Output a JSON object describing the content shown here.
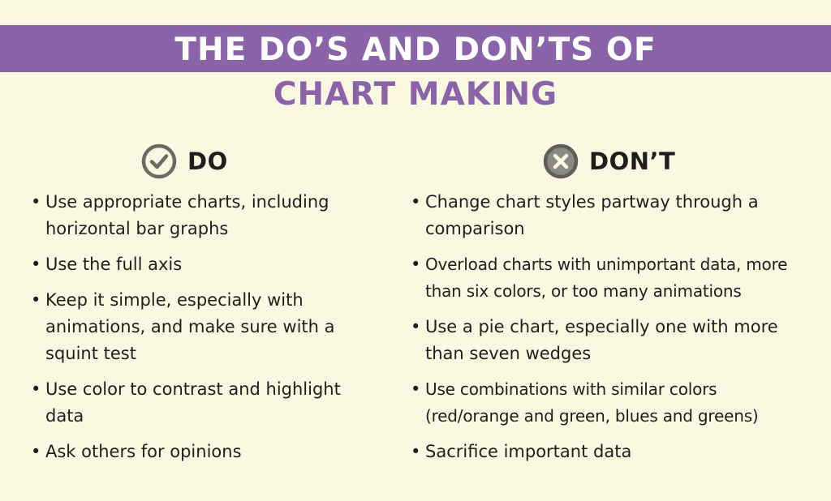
{
  "title": {
    "line1": "THE DO’S AND DON’TS OF",
    "line2": "CHART MAKING"
  },
  "colors": {
    "background": "#fbf8e2",
    "accent_purple": "#8b63a8",
    "icon_gray": "#6b6b64",
    "text": "#1e1e1e"
  },
  "do": {
    "icon": "check-circle-icon",
    "heading": "DO",
    "items": [
      "Use appropriate charts, including horizontal bar graphs",
      "Use the full axis",
      "Keep it simple, especially with animations, and make sure with a squint test",
      "Use color to contrast and highlight data",
      "Ask others for opinions"
    ]
  },
  "dont": {
    "icon": "x-circle-icon",
    "heading": "DON’T",
    "items": [
      "Change chart styles partway through a comparison",
      "Overload charts with unimportant data, more than six colors, or too many animations",
      "Use a pie chart, especially one with more than seven wedges",
      "Use combinations with similar colors (red/orange and green, blues and greens)",
      "Sacrifice important data"
    ]
  },
  "bullet": "•"
}
